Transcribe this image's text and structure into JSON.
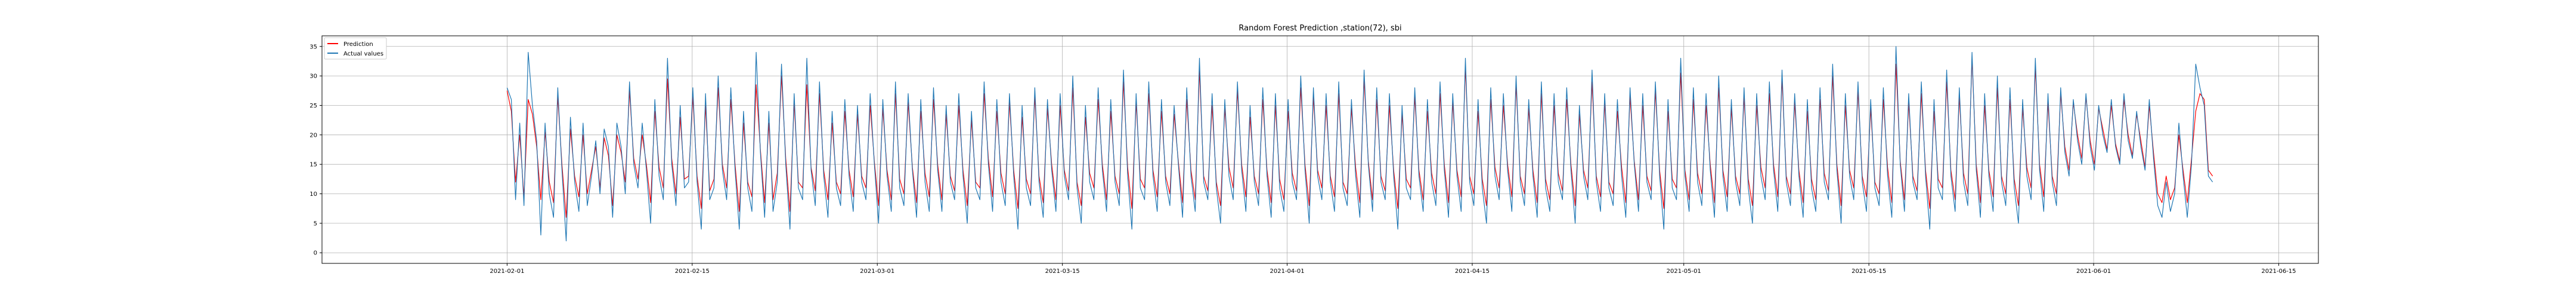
{
  "chart_data": {
    "type": "line",
    "title": "Random Forest Prediction ,station(72), sbi",
    "xlabel": "",
    "ylabel": "",
    "xlim": [
      "2021-01-18",
      "2021-06-18"
    ],
    "ylim": [
      -1.8,
      36.8
    ],
    "x_ticks": [
      "2021-02-01",
      "2021-02-15",
      "2021-03-01",
      "2021-03-15",
      "2021-04-01",
      "2021-04-15",
      "2021-05-01",
      "2021-05-15",
      "2021-06-01",
      "2021-06-15"
    ],
    "y_ticks": [
      0,
      5,
      10,
      15,
      20,
      25,
      30,
      35
    ],
    "grid": true,
    "legend_position": "top-left",
    "x_start": "2021-02-01",
    "x_end": "2021-06-10",
    "series": [
      {
        "name": "Prediction",
        "color": "#ff0000",
        "values": [
          27.5,
          24.0,
          12.0,
          20.0,
          9.5,
          26.0,
          23.5,
          18.0,
          9.0,
          20.5,
          12.0,
          8.5,
          26.5,
          15.0,
          6.0,
          21.0,
          13.0,
          9.5,
          20.0,
          10.0,
          14.0,
          18.0,
          11.0,
          19.5,
          16.5,
          8.0,
          20.0,
          17.0,
          12.0,
          27.5,
          16.0,
          12.5,
          20.0,
          15.0,
          8.5,
          24.0,
          14.5,
          11.0,
          29.5,
          16.0,
          10.0,
          23.0,
          12.5,
          13.0,
          26.5,
          13.0,
          7.5,
          25.0,
          10.5,
          12.5,
          28.0,
          15.0,
          11.0,
          26.0,
          15.0,
          7.0,
          22.0,
          12.0,
          9.5,
          28.5,
          17.5,
          8.5,
          22.0,
          9.0,
          13.5,
          30.0,
          16.0,
          7.0,
          25.5,
          12.0,
          11.0,
          28.5,
          14.5,
          10.5,
          27.0,
          14.0,
          9.0,
          22.0,
          12.0,
          10.0,
          24.0,
          14.0,
          9.5,
          23.5,
          13.0,
          11.0,
          25.0,
          15.5,
          8.0,
          24.5,
          14.0,
          9.0,
          27.0,
          12.5,
          10.0,
          25.5,
          14.5,
          8.5,
          24.0,
          13.5,
          9.5,
          26.0,
          15.0,
          9.0,
          23.5,
          13.0,
          10.5,
          25.0,
          14.0,
          8.0,
          22.5,
          12.0,
          11.0,
          27.0,
          16.0,
          9.5,
          24.0,
          13.5,
          10.0,
          25.5,
          14.0,
          7.5,
          23.0,
          12.5,
          10.0,
          26.5,
          13.0,
          8.5,
          24.5,
          15.0,
          9.0,
          25.0,
          14.0,
          10.5,
          28.0,
          12.0,
          8.0,
          23.0,
          13.5,
          11.0,
          26.0,
          15.0,
          9.0,
          24.0,
          13.0,
          10.0,
          29.0,
          14.5,
          7.5,
          25.5,
          12.5,
          11.0,
          27.0,
          14.0,
          9.5,
          24.0,
          13.0,
          10.0,
          23.5,
          15.5,
          8.5,
          26.0,
          14.0,
          9.0,
          31.0,
          13.0,
          10.5,
          25.0,
          12.0,
          8.0,
          24.5,
          14.5,
          11.0,
          27.5,
          15.0,
          9.5,
          23.0,
          13.0,
          10.0,
          26.0,
          14.0,
          8.5,
          25.0,
          12.5,
          9.0,
          24.0,
          13.5,
          10.5,
          28.0,
          15.0,
          8.0,
          26.5,
          14.0,
          11.0,
          25.0,
          13.0,
          9.5,
          27.0,
          12.0,
          10.0,
          24.5,
          14.5,
          8.5,
          29.5,
          15.5,
          9.0,
          26.0,
          13.0,
          10.5,
          25.0,
          14.0,
          7.5,
          23.5,
          12.5,
          11.0,
          26.5,
          14.0,
          9.0,
          24.0,
          13.5,
          10.0,
          27.0,
          15.0,
          8.5,
          25.5,
          14.0,
          9.5,
          31.5,
          13.0,
          10.0,
          24.0,
          12.5,
          8.0,
          26.0,
          14.5,
          11.0,
          25.0,
          15.0,
          9.5,
          28.5,
          13.0,
          10.0,
          24.5,
          14.0,
          8.5,
          27.0,
          12.5,
          9.0,
          25.0,
          13.5,
          10.5,
          26.0,
          15.0,
          8.0,
          23.5,
          14.0,
          11.0,
          29.0,
          13.0,
          9.5,
          25.5,
          12.0,
          10.0,
          24.0,
          14.5,
          8.5,
          26.5,
          15.5,
          9.0,
          25.0,
          13.0,
          10.5,
          27.5,
          14.0,
          7.5,
          24.0,
          12.5,
          11.0,
          30.5,
          14.0,
          9.0,
          26.0,
          13.5,
          10.0,
          25.0,
          15.0,
          8.5,
          28.0,
          14.0,
          9.5,
          24.5,
          13.0,
          10.0,
          26.5,
          12.5,
          8.0,
          25.0,
          14.5,
          11.0,
          27.0,
          15.0,
          9.5,
          29.5,
          13.0,
          10.0,
          25.5,
          14.0,
          8.5,
          24.0,
          12.5,
          9.0,
          26.0,
          13.5,
          10.5,
          30.0,
          15.0,
          8.0,
          25.0,
          14.0,
          11.0,
          27.5,
          13.0,
          9.5,
          24.5,
          12.0,
          10.0,
          26.0,
          14.5,
          8.5,
          32.0,
          15.5,
          9.0,
          25.5,
          13.0,
          10.5,
          27.0,
          14.0,
          7.5,
          24.0,
          12.5,
          11.0,
          29.0,
          14.0,
          9.0,
          26.5,
          13.5,
          10.0,
          33.0,
          15.0,
          8.5,
          25.0,
          14.0,
          9.5,
          28.0,
          13.0,
          10.0,
          26.0,
          12.5,
          8.0,
          24.5,
          14.5,
          11.0,
          31.5,
          15.0,
          9.5,
          25.5,
          13.0,
          10.0,
          27.0,
          18.0,
          14.0,
          25.5,
          20.0,
          16.0,
          26.5,
          19.0,
          15.0,
          24.5,
          21.0,
          17.5,
          25.0,
          18.5,
          15.5,
          26.0,
          20.0,
          16.5,
          23.5,
          19.0,
          14.5,
          25.0,
          17.0,
          10.0,
          8.5,
          13.0,
          9.0,
          11.0,
          20.0,
          14.0,
          8.5,
          16.0,
          24.0,
          27.0,
          26.0,
          14.0,
          13.0
        ]
      },
      {
        "name": "Actual values",
        "color": "#1f77b4",
        "values": [
          28.0,
          26.0,
          9.0,
          22.0,
          8.0,
          34.0,
          25.0,
          19.0,
          3.0,
          22.0,
          10.0,
          6.0,
          28.0,
          14.0,
          2.0,
          23.0,
          12.0,
          7.0,
          22.0,
          8.0,
          13.0,
          19.0,
          10.0,
          21.0,
          18.0,
          6.0,
          22.0,
          18.0,
          10.0,
          29.0,
          15.0,
          11.0,
          22.0,
          14.0,
          5.0,
          26.0,
          13.0,
          9.0,
          33.0,
          15.0,
          8.0,
          25.0,
          11.0,
          12.0,
          28.0,
          12.0,
          4.0,
          27.0,
          9.0,
          11.0,
          30.0,
          14.0,
          9.0,
          28.0,
          14.0,
          4.0,
          24.0,
          11.0,
          7.0,
          34.0,
          17.0,
          6.0,
          24.0,
          7.0,
          12.0,
          32.0,
          15.0,
          4.0,
          27.0,
          11.0,
          9.0,
          33.0,
          14.0,
          8.0,
          29.0,
          13.0,
          6.0,
          24.0,
          11.0,
          8.0,
          26.0,
          13.0,
          7.0,
          25.0,
          12.0,
          9.0,
          27.0,
          15.0,
          5.0,
          26.0,
          13.0,
          7.0,
          29.0,
          11.0,
          8.0,
          27.0,
          14.0,
          6.0,
          26.0,
          12.0,
          7.0,
          28.0,
          14.0,
          7.0,
          25.0,
          12.0,
          9.0,
          27.0,
          13.0,
          5.0,
          24.0,
          11.0,
          9.0,
          29.0,
          15.0,
          7.0,
          26.0,
          12.0,
          8.0,
          27.0,
          13.0,
          4.0,
          25.0,
          11.0,
          8.0,
          28.0,
          12.0,
          6.0,
          26.0,
          14.0,
          7.0,
          27.0,
          13.0,
          9.0,
          30.0,
          11.0,
          5.0,
          25.0,
          12.0,
          9.0,
          28.0,
          14.0,
          7.0,
          26.0,
          12.0,
          8.0,
          31.0,
          13.0,
          4.0,
          27.0,
          11.0,
          9.0,
          29.0,
          13.0,
          7.0,
          26.0,
          12.0,
          8.0,
          25.0,
          15.0,
          6.0,
          28.0,
          13.0,
          7.0,
          33.0,
          12.0,
          9.0,
          27.0,
          11.0,
          5.0,
          26.0,
          13.0,
          9.0,
          29.0,
          14.0,
          7.0,
          25.0,
          12.0,
          8.0,
          28.0,
          13.0,
          6.0,
          27.0,
          11.0,
          7.0,
          26.0,
          12.0,
          9.0,
          30.0,
          14.0,
          5.0,
          28.0,
          13.0,
          9.0,
          27.0,
          12.0,
          7.0,
          29.0,
          11.0,
          8.0,
          26.0,
          13.0,
          6.0,
          31.0,
          15.0,
          7.0,
          28.0,
          12.0,
          9.0,
          27.0,
          13.0,
          4.0,
          25.0,
          11.0,
          9.0,
          28.0,
          13.0,
          7.0,
          26.0,
          12.0,
          8.0,
          29.0,
          14.0,
          6.0,
          27.0,
          13.0,
          7.0,
          33.0,
          12.0,
          8.0,
          26.0,
          11.0,
          5.0,
          28.0,
          13.0,
          9.0,
          27.0,
          14.0,
          7.0,
          30.0,
          12.0,
          8.0,
          26.0,
          13.0,
          6.0,
          29.0,
          11.0,
          7.0,
          27.0,
          12.0,
          9.0,
          28.0,
          14.0,
          5.0,
          25.0,
          13.0,
          9.0,
          31.0,
          12.0,
          7.0,
          27.0,
          11.0,
          8.0,
          26.0,
          13.0,
          6.0,
          28.0,
          15.0,
          7.0,
          27.0,
          12.0,
          9.0,
          29.0,
          13.0,
          4.0,
          26.0,
          11.0,
          9.0,
          33.0,
          13.0,
          7.0,
          28.0,
          12.0,
          8.0,
          27.0,
          14.0,
          6.0,
          30.0,
          13.0,
          7.0,
          26.0,
          12.0,
          8.0,
          28.0,
          11.0,
          5.0,
          27.0,
          13.0,
          9.0,
          29.0,
          14.0,
          7.0,
          31.0,
          12.0,
          8.0,
          27.0,
          13.0,
          6.0,
          26.0,
          11.0,
          7.0,
          28.0,
          12.0,
          9.0,
          32.0,
          14.0,
          5.0,
          27.0,
          13.0,
          9.0,
          29.0,
          12.0,
          7.0,
          26.0,
          11.0,
          8.0,
          28.0,
          13.0,
          6.0,
          35.0,
          15.0,
          7.0,
          27.0,
          12.0,
          9.0,
          29.0,
          13.0,
          4.0,
          26.0,
          11.0,
          9.0,
          31.0,
          13.0,
          7.0,
          28.0,
          12.0,
          8.0,
          34.0,
          14.0,
          6.0,
          27.0,
          13.0,
          7.0,
          30.0,
          12.0,
          8.0,
          28.0,
          11.0,
          5.0,
          26.0,
          13.0,
          9.0,
          33.0,
          14.0,
          7.0,
          27.0,
          12.0,
          8.0,
          28.0,
          17.0,
          13.0,
          26.0,
          19.0,
          15.0,
          27.0,
          18.0,
          14.0,
          25.0,
          20.0,
          17.0,
          26.0,
          18.0,
          15.0,
          27.0,
          19.0,
          16.0,
          24.0,
          18.0,
          14.0,
          26.0,
          16.0,
          8.0,
          6.0,
          12.0,
          7.0,
          10.0,
          22.0,
          13.0,
          6.0,
          15.0,
          32.0,
          28.0,
          25.0,
          13.0,
          12.0
        ]
      }
    ]
  }
}
